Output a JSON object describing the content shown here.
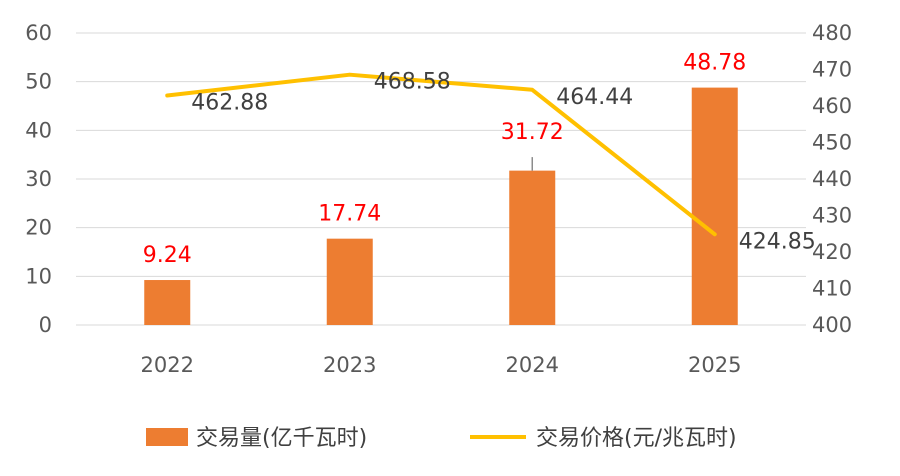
{
  "chart_data": {
    "type": "bar",
    "categories": [
      "2022",
      "2023",
      "2024",
      "2025"
    ],
    "series": [
      {
        "name": "交易量(亿千瓦时)",
        "type": "bar",
        "axis": "left",
        "values": [
          9.24,
          17.74,
          31.72,
          48.78
        ],
        "labels": [
          "9.24",
          "17.74",
          "31.72",
          "48.78"
        ],
        "color": "#ed7d31",
        "label_color": "#ff0000",
        "error_bar_top": [
          null,
          null,
          34.5,
          null
        ]
      },
      {
        "name": "交易价格(元/兆瓦时)",
        "type": "line",
        "axis": "right",
        "values": [
          462.88,
          468.58,
          464.44,
          424.85
        ],
        "labels": [
          "462.88",
          "468.58",
          "464.44",
          "424.85"
        ],
        "color": "#ffc000",
        "label_color": "#404040"
      }
    ],
    "y_left": {
      "ylim": [
        0,
        60
      ],
      "ticks": [
        0,
        10,
        20,
        30,
        40,
        50,
        60
      ]
    },
    "y_right": {
      "ylim": [
        400,
        480
      ],
      "ticks": [
        400,
        410,
        420,
        430,
        440,
        450,
        460,
        470,
        480
      ]
    },
    "grid": true,
    "legend_position": "bottom"
  }
}
